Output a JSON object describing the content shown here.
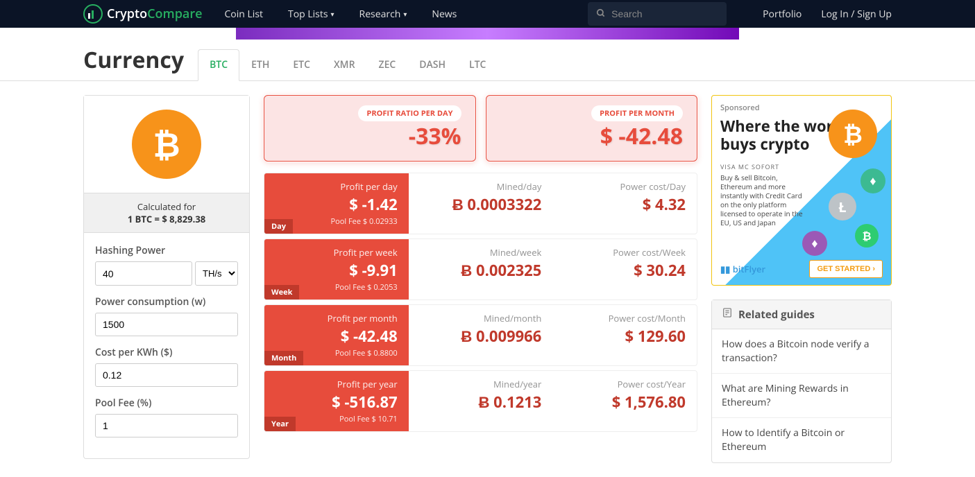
{
  "nav": {
    "logo_white": "Crypto",
    "logo_green": "Compare",
    "links": [
      "Coin List",
      "Top Lists",
      "Research",
      "News"
    ],
    "search_placeholder": "Search",
    "portfolio": "Portfolio",
    "login": "Log In / Sign Up"
  },
  "header": {
    "title": "Currency",
    "tabs": [
      "BTC",
      "ETH",
      "ETC",
      "XMR",
      "ZEC",
      "DASH",
      "LTC"
    ],
    "active_tab": "BTC"
  },
  "left": {
    "calc_label": "Calculated for",
    "calc_rate": "1 BTC = $ 8,829.38",
    "hashing_label": "Hashing Power",
    "hashing_value": "40",
    "hashing_unit": "TH/s",
    "power_label": "Power consumption (w)",
    "power_value": "1500",
    "cost_label": "Cost per KWh ($)",
    "cost_value": "0.12",
    "pool_label": "Pool Fee (%)",
    "pool_value": "1"
  },
  "summary": {
    "ratio_badge": "PROFIT RATIO PER DAY",
    "ratio_value": "-33%",
    "month_badge": "PROFIT PER MONTH",
    "month_value": "$ -42.48"
  },
  "table": [
    {
      "period": "Day",
      "profit_label": "Profit per day",
      "profit": "$ -1.42",
      "fee": "Pool Fee $ 0.02933",
      "mined_label": "Mined/day",
      "mined": "Ƀ 0.0003322",
      "power_label": "Power cost/Day",
      "power": "$ 4.32"
    },
    {
      "period": "Week",
      "profit_label": "Profit per week",
      "profit": "$ -9.91",
      "fee": "Pool Fee $ 0.2053",
      "mined_label": "Mined/week",
      "mined": "Ƀ 0.002325",
      "power_label": "Power cost/Week",
      "power": "$ 30.24"
    },
    {
      "period": "Month",
      "profit_label": "Profit per month",
      "profit": "$ -42.48",
      "fee": "Pool Fee $ 0.8800",
      "mined_label": "Mined/month",
      "mined": "Ƀ 0.009966",
      "power_label": "Power cost/Month",
      "power": "$ 129.60"
    },
    {
      "period": "Year",
      "profit_label": "Profit per year",
      "profit": "$ -516.87",
      "fee": "Pool Fee $ 10.71",
      "mined_label": "Mined/year",
      "mined": "Ƀ 0.1213",
      "power_label": "Power cost/Year",
      "power": "$ 1,576.80"
    }
  ],
  "sponsor": {
    "label": "Sponsored",
    "title": "Where the world buys crypto",
    "desc": "Buy & sell Bitcoin, Ethereum and more instantly with Credit Card on the only platform licensed to operate in the EU, US and Japan",
    "brand": "bitFlyer",
    "cta": "GET STARTED ›",
    "pay": "VISA  MC  SOFORT"
  },
  "related": {
    "title": "Related guides",
    "items": [
      "How does a Bitcoin node verify a transaction?",
      "What are Mining Rewards in Ethereum?",
      "How to Identify a Bitcoin or Ethereum"
    ]
  },
  "colors": {
    "brand_green": "#27ae60",
    "navbar_bg": "#0b1426",
    "btc_orange": "#f7931a",
    "red": "#e74c3c",
    "red_dark": "#c0392b"
  }
}
